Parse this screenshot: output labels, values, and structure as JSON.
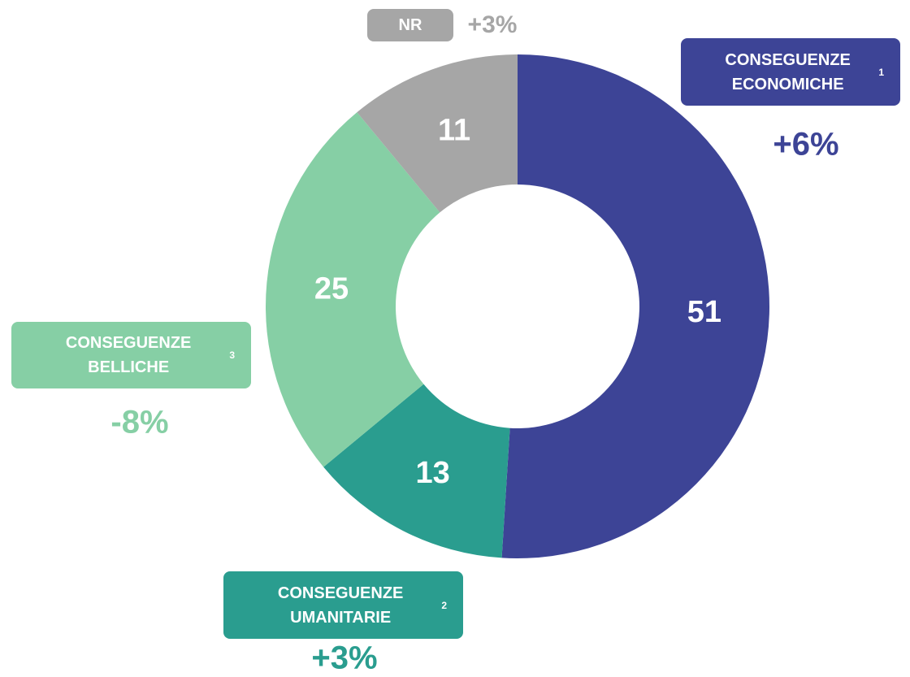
{
  "chart_data": {
    "type": "donut",
    "categories": [
      "CONSEGUENZE ECONOMICHE",
      "CONSEGUENZE UMANITARIE",
      "CONSEGUENZE BELLICHE",
      "NR"
    ],
    "footnotes": [
      "1",
      "2",
      "3",
      null
    ],
    "values": [
      51,
      13,
      25,
      11
    ],
    "colors": [
      "#3d4496",
      "#2a9d8f",
      "#86cfa5",
      "#a6a6a6"
    ],
    "changes": [
      6,
      3,
      -8,
      3
    ],
    "change_labels": [
      "+6%",
      "+3%",
      "-8%",
      "+3%"
    ]
  }
}
